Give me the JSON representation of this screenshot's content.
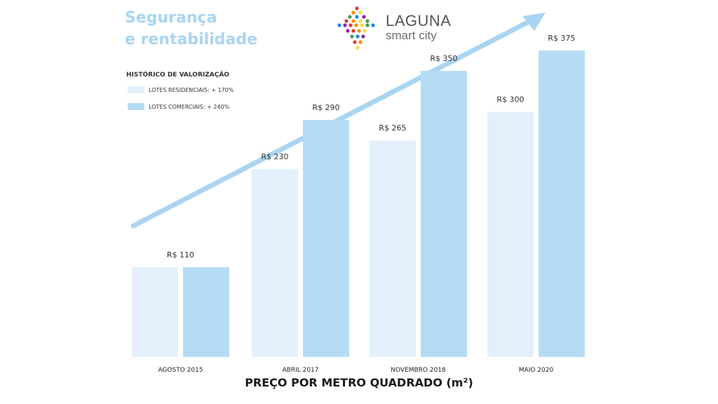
{
  "header": {
    "headline_line1": "Segurança",
    "headline_line2": "e rentabilidade",
    "logo_name": "LAGUNA",
    "logo_tagline": "smart city"
  },
  "legend": {
    "title": "HISTÓRICO DE VALORIZAÇÃO",
    "items": [
      {
        "label": "LOTES RESIDENCIAIS: + 170%",
        "color": "#e3f0fb"
      },
      {
        "label": "LOTES COMERCIAIS: + 240%",
        "color": "#b6dcf4"
      }
    ]
  },
  "colors": {
    "headline": "#a9d5f2",
    "arrow": "#a9d5f2",
    "residential": "#e3f0fb",
    "commercial": "#b6dcf4"
  },
  "chart_data": {
    "type": "bar",
    "categories": [
      "AGOSTO 2015",
      "ABRIL 2017",
      "NOVEMBRO 2018",
      "MAIO 2020"
    ],
    "series": [
      {
        "name": "LOTES RESIDENCIAIS: + 170%",
        "values": [
          110,
          230,
          265,
          300
        ]
      },
      {
        "name": "LOTES COMERCIAIS: + 240%",
        "values": [
          110,
          290,
          350,
          375
        ]
      }
    ],
    "data_labels": [
      [
        {
          "text": "R$ 110",
          "series": "both"
        }
      ],
      [
        {
          "text": "R$ 230",
          "series": 0
        },
        {
          "text": "R$ 290",
          "series": 1
        }
      ],
      [
        {
          "text": "R$ 265",
          "series": 0
        },
        {
          "text": "R$ 350",
          "series": 1
        }
      ],
      [
        {
          "text": "R$ 300",
          "series": 0
        },
        {
          "text": "R$ 375",
          "series": 1
        }
      ]
    ],
    "xlabel": "PREÇO POR METRO QUADRADO (m²)",
    "ylabel": "",
    "ylim": [
      0,
      375
    ],
    "grid": false,
    "trend_arrow": true
  }
}
